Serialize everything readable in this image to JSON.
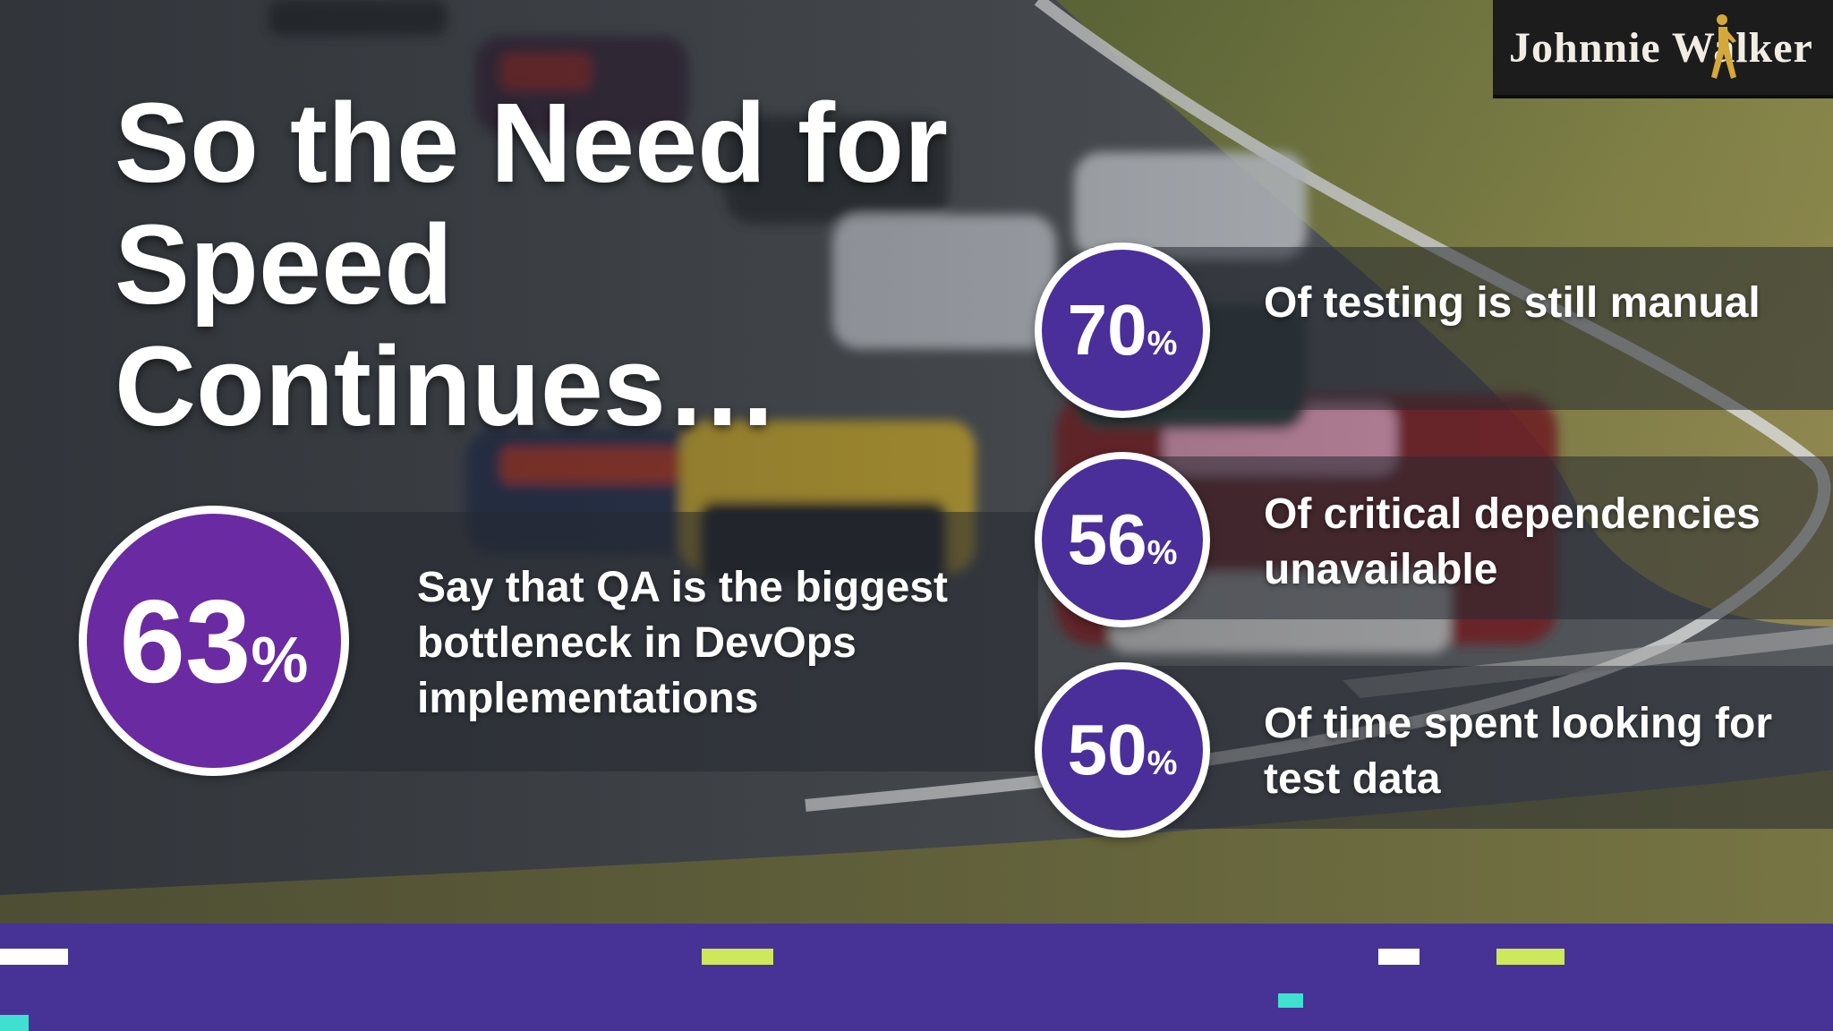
{
  "sponsor": {
    "text": "Johnnie Walker"
  },
  "title": {
    "text": "So the Need for Speed Continues…"
  },
  "stats": {
    "main": {
      "value": "63",
      "symbol": "%",
      "text": "Say that QA is the biggest bottleneck in DevOps implementations"
    },
    "items": [
      {
        "value": "70",
        "symbol": "%",
        "text": "Of testing is still manual"
      },
      {
        "value": "56",
        "symbol": "%",
        "text": "Of critical dependencies unavailable"
      },
      {
        "value": "50",
        "symbol": "%",
        "text": "Of time spent looking for test data"
      }
    ]
  },
  "colors": {
    "footer": "#473395",
    "circle_main": "#6a2aa1",
    "circle_small": "#4a2e9a",
    "dash_white": "#ffffff",
    "dash_lime": "#cde85a",
    "dash_teal": "#3fe0d0"
  }
}
